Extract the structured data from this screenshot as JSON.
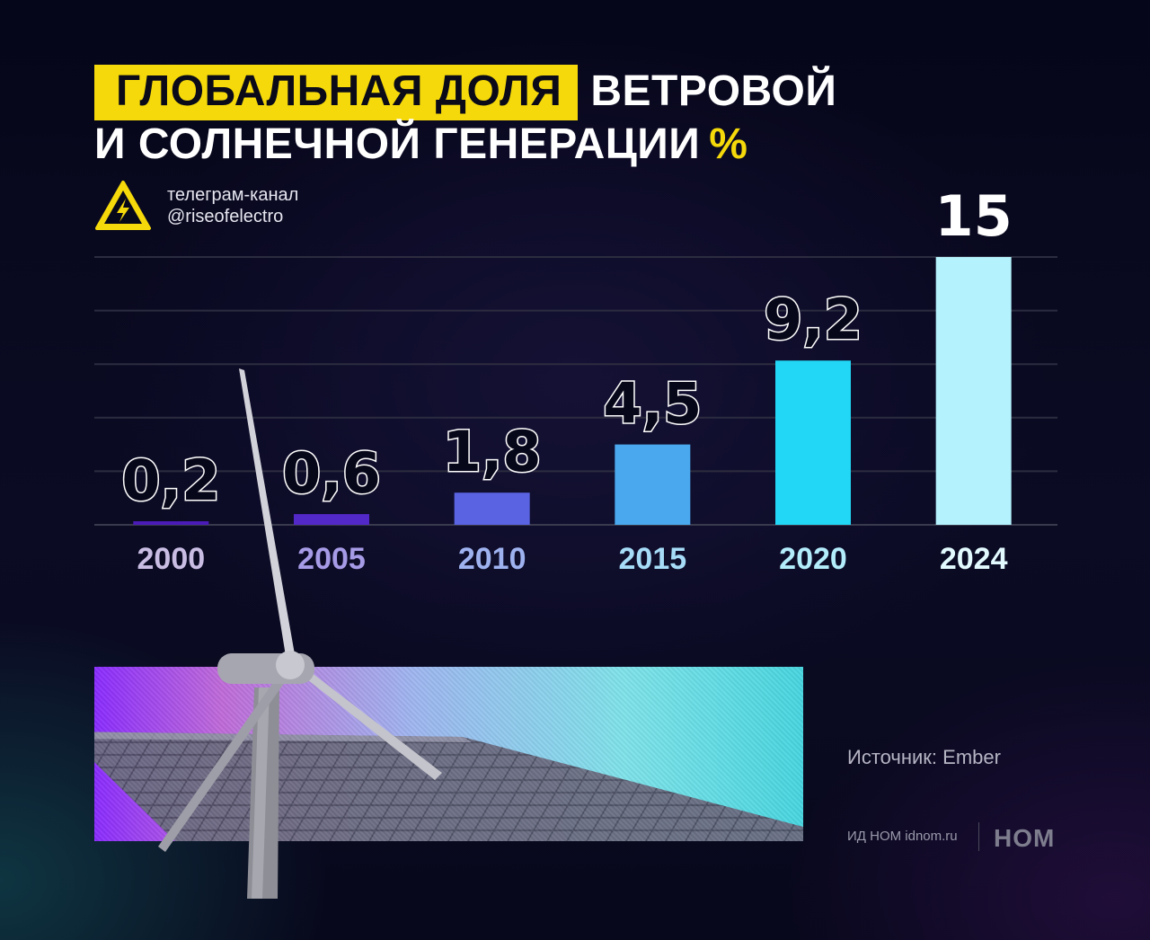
{
  "title": {
    "highlight": "ГЛОБАЛЬНАЯ ДОЛЯ",
    "line1_rest": "ВЕТРОВОЙ",
    "line2": "И СОЛНЕЧНОЙ ГЕНЕРАЦИИ",
    "unit": "%"
  },
  "channel": {
    "icon": "high-voltage-warning-icon",
    "line1": "телеграм-канал",
    "line2": "@riseofelectro"
  },
  "chart_data": {
    "type": "bar",
    "categories": [
      "2000",
      "2005",
      "2010",
      "2015",
      "2020",
      "2024"
    ],
    "values": [
      0.2,
      0.6,
      1.8,
      4.5,
      9.2,
      15
    ],
    "value_labels": [
      "0,2",
      "0,6",
      "1,8",
      "4,5",
      "9,2",
      "15"
    ],
    "bar_colors": [
      "#4a1bb8",
      "#5328c8",
      "#5a64e2",
      "#4aa8ef",
      "#22d6f5",
      "#b4f2fd"
    ],
    "label_colors": [
      "#c9bde3",
      "#a69be6",
      "#9fb2f0",
      "#a6dcf7",
      "#b3ecfb",
      "#e2fafe"
    ],
    "unit": "%",
    "ylim": [
      0,
      15
    ],
    "grid": true,
    "xlabel": "",
    "ylabel": ""
  },
  "source": "Источник: Ember",
  "publisher": "ИД НОМ idnom.ru",
  "logo": "НОМ"
}
